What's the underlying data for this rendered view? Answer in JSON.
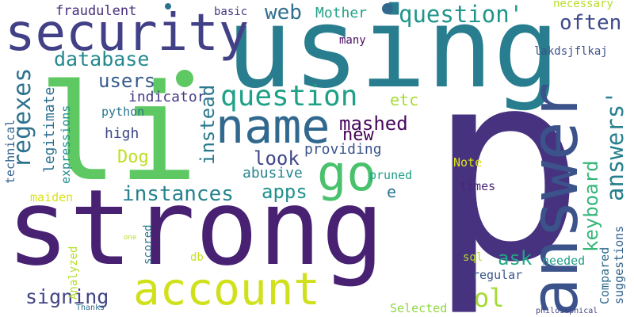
{
  "words": {
    "p": {
      "text": "p",
      "color": "#46327e"
    },
    "using": {
      "text": "using",
      "color": "#287e8e"
    },
    "strong": {
      "text": "strong",
      "color": "#482173"
    },
    "li": {
      "text": "li",
      "color": "#5ec962"
    },
    "answer": {
      "text": "answer",
      "color": "#3b528b"
    },
    "security": {
      "text": "security",
      "color": "#424086"
    },
    "account": {
      "text": "account",
      "color": "#d0e11c"
    },
    "name": {
      "text": "name",
      "color": "#31688e"
    },
    "go": {
      "text": "go",
      "color": "#4ac16d"
    },
    "question": {
      "text": "question",
      "color": "#1fa187"
    },
    "question_q": {
      "text": "question'",
      "color": "#1f958b"
    },
    "regexes": {
      "text": "regexes",
      "color": "#2c728e"
    },
    "answers_q": {
      "text": "answers'",
      "color": "#277f8e"
    },
    "instances": {
      "text": "instances",
      "color": "#26828e"
    },
    "web": {
      "text": "web",
      "color": "#2e6f8e"
    },
    "often": {
      "text": "often",
      "color": "#3e4989"
    },
    "database": {
      "text": "database",
      "color": "#23898e"
    },
    "users": {
      "text": "users",
      "color": "#365c8d"
    },
    "mashed": {
      "text": "mashed",
      "color": "#46085c"
    },
    "keyboard": {
      "text": "keyboard",
      "color": "#35b779"
    },
    "instead": {
      "text": "instead",
      "color": "#2a788e"
    },
    "look": {
      "text": "look",
      "color": "#3f4788"
    },
    "apps": {
      "text": "apps",
      "color": "#21918c"
    },
    "ol": {
      "text": "ol",
      "color": "#a5db36"
    },
    "ask": {
      "text": "ask",
      "color": "#22a884"
    },
    "signing": {
      "text": "signing",
      "color": "#414487"
    },
    "new": {
      "text": "new",
      "color": "#440154"
    },
    "Dog": {
      "text": "Dog",
      "color": "#bddf26"
    },
    "fraudulent": {
      "text": "fraudulent",
      "color": "#472d7b"
    },
    "Mother": {
      "text": "Mother",
      "color": "#1fa188"
    },
    "etc": {
      "text": "etc",
      "color": "#a8db34"
    },
    "indicator": {
      "text": "indicator",
      "color": "#443a83"
    },
    "high": {
      "text": "high",
      "color": "#3f4889"
    },
    "providing": {
      "text": "providing",
      "color": "#3a548c"
    },
    "abusive": {
      "text": "abusive",
      "color": "#25848e"
    },
    "legitimate": {
      "text": "legitimate",
      "color": "#2d708e"
    },
    "expressions": {
      "text": "expressions",
      "color": "#228d8d"
    },
    "technical": {
      "text": "technical",
      "color": "#33638d"
    },
    "python": {
      "text": "python",
      "color": "#2a768e"
    },
    "maiden": {
      "text": "maiden",
      "color": "#d8e219"
    },
    "pruned": {
      "text": "pruned",
      "color": "#1fa088"
    },
    "e": {
      "text": "e",
      "color": "#2b748e"
    },
    "Note": {
      "text": "Note",
      "color": "#dde318"
    },
    "times": {
      "text": "times",
      "color": "#482575"
    },
    "basic": {
      "text": "basic",
      "color": "#453781"
    },
    "necessary": {
      "text": "necessary",
      "color": "#b8de29"
    },
    "many": {
      "text": "many",
      "color": "#470d60"
    },
    "lakdsjflkaj": {
      "text": "lakdsjflkaj",
      "color": "#3b518b"
    },
    "scored": {
      "text": "scored",
      "color": "#29798e"
    },
    "db": {
      "text": "db",
      "color": "#c8e020"
    },
    "sql": {
      "text": "sql",
      "color": "#bade28"
    },
    "needed": {
      "text": "needed",
      "color": "#1f9e89"
    },
    "regular": {
      "text": "regular",
      "color": "#39558c"
    },
    "Compared": {
      "text": "Compared",
      "color": "#2f6c8e"
    },
    "suggestions": {
      "text": "suggestions",
      "color": "#33628d"
    },
    "Analyzed": {
      "text": "Analyzed",
      "color": "#b2dd2d"
    },
    "Selected": {
      "text": "Selected",
      "color": "#8fd744"
    },
    "Thanks": {
      "text": "Thanks",
      "color": "#2e6e8e"
    },
    "one": {
      "text": "one",
      "color": "#b5de2b"
    },
    "philosophical": {
      "text": "philosophical",
      "color": "#404688"
    }
  },
  "dots": {
    "green_dot": {
      "color": "#5ec962"
    },
    "navy_dot": {
      "color": "#31688e"
    },
    "small_dot": {
      "color": "#2c728e"
    }
  }
}
